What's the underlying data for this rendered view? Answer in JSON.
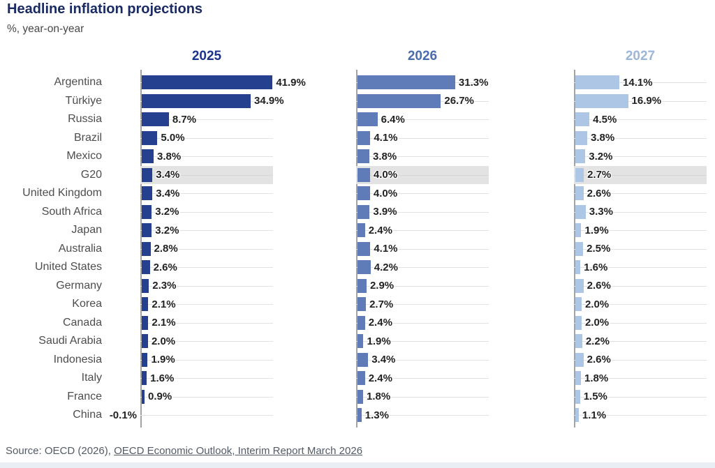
{
  "page": {
    "title": "Headline inflation projections",
    "subtitle": "%, year-on-year",
    "source_prefix": "Source: OECD (2026), ",
    "source_link": "OECD Economic Outlook, Interim Report March 2026"
  },
  "chart_data": {
    "type": "bar",
    "orientation": "horizontal",
    "title": "Headline inflation projections",
    "unit_label": "%, year-on-year",
    "value_suffix": "%",
    "xlim": [
      0,
      42.5
    ],
    "grid": "row-lines",
    "highlight_category": "G20",
    "categories": [
      "Argentina",
      "Türkiye",
      "Russia",
      "Brazil",
      "Mexico",
      "G20",
      "United Kingdom",
      "South Africa",
      "Japan",
      "Australia",
      "United States",
      "Germany",
      "Korea",
      "Canada",
      "Saudi Arabia",
      "Indonesia",
      "Italy",
      "France",
      "China"
    ],
    "series": [
      {
        "name": "2025",
        "bar_color": "#24408f",
        "header_color": "#1c338c",
        "values": [
          41.9,
          34.9,
          8.7,
          5.0,
          3.8,
          3.4,
          3.4,
          3.2,
          3.2,
          2.8,
          2.6,
          2.3,
          2.1,
          2.1,
          2.0,
          1.9,
          1.6,
          0.9,
          -0.1
        ]
      },
      {
        "name": "2026",
        "bar_color": "#5f7cb8",
        "header_color": "#4a6cae",
        "values": [
          31.3,
          26.7,
          6.4,
          4.1,
          3.8,
          4.0,
          4.0,
          3.9,
          2.4,
          4.1,
          4.2,
          2.9,
          2.7,
          2.4,
          1.9,
          3.4,
          2.4,
          1.8,
          1.3
        ]
      },
      {
        "name": "2027",
        "bar_color": "#adc6e6",
        "header_color": "#9cb6da",
        "values": [
          14.1,
          16.9,
          4.5,
          3.8,
          3.2,
          2.7,
          2.6,
          3.3,
          1.9,
          2.5,
          1.6,
          2.6,
          2.0,
          2.0,
          2.2,
          2.6,
          1.8,
          1.5,
          1.1
        ]
      }
    ]
  },
  "colors": {
    "title": "#1a2b63",
    "country_label": "#4d4d4d",
    "value_label": "#222222",
    "row_gridline": "#e2e2e2",
    "highlight_band": "#e3e3e3",
    "axis_line": "#a3a3a3",
    "source_text": "#545a66"
  }
}
